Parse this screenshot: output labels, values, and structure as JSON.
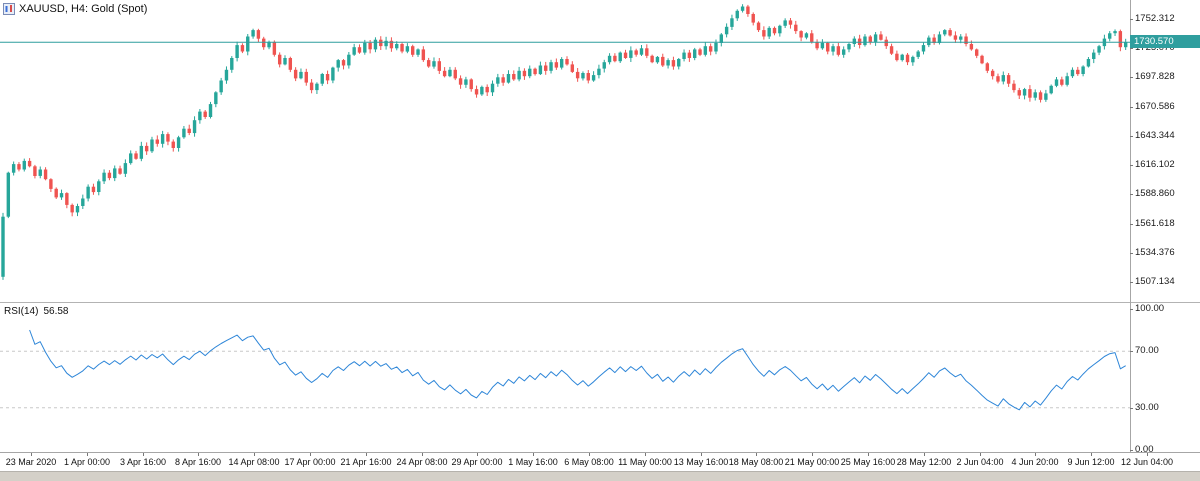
{
  "chart_data": {
    "type": "candlestick",
    "title": "XAUUSD, H4:  Gold (Spot)",
    "symbol": "XAUUSD",
    "timeframe": "H4",
    "description": "Gold (Spot)",
    "current_price": 1730.57,
    "current_price_label": "1730.570",
    "up_color": "#26a69a",
    "down_color": "#ef5350",
    "price_line_color": "#2f9e9e",
    "y_tick_labels": [
      "1752.312",
      "1725.070",
      "1697.828",
      "1670.586",
      "1643.344",
      "1616.102",
      "1588.860",
      "1561.618",
      "1534.376",
      "1507.134"
    ],
    "y_tick_values": [
      1752.312,
      1725.07,
      1697.828,
      1670.586,
      1643.344,
      1616.102,
      1588.86,
      1561.618,
      1534.376,
      1507.134
    ],
    "x_tick_labels": [
      "23 Mar 2020",
      "1 Apr 00:00",
      "3 Apr 16:00",
      "8 Apr 16:00",
      "14 Apr 08:00",
      "17 Apr 00:00",
      "21 Apr 16:00",
      "24 Apr 08:00",
      "29 Apr 00:00",
      "1 May 16:00",
      "6 May 08:00",
      "11 May 00:00",
      "13 May 16:00",
      "18 May 08:00",
      "21 May 00:00",
      "25 May 16:00",
      "28 May 12:00",
      "2 Jun 04:00",
      "4 Jun 20:00",
      "9 Jun 12:00",
      "12 Jun 04:00"
    ],
    "first_open": 1512,
    "closes": [
      1568,
      1609,
      1617,
      1612,
      1620,
      1615,
      1606,
      1612,
      1603,
      1594,
      1586,
      1590,
      1579,
      1572,
      1578,
      1585,
      1596,
      1591,
      1601,
      1609,
      1604,
      1613,
      1608,
      1618,
      1627,
      1622,
      1634,
      1629,
      1640,
      1636,
      1645,
      1638,
      1632,
      1642,
      1650,
      1646,
      1658,
      1666,
      1661,
      1673,
      1684,
      1695,
      1705,
      1716,
      1728,
      1722,
      1736,
      1742,
      1734,
      1726,
      1731,
      1719,
      1710,
      1716,
      1705,
      1697,
      1703,
      1693,
      1686,
      1692,
      1701,
      1695,
      1707,
      1714,
      1709,
      1719,
      1726,
      1721,
      1730,
      1724,
      1733,
      1727,
      1732,
      1725,
      1729,
      1722,
      1727,
      1719,
      1724,
      1714,
      1708,
      1713,
      1704,
      1699,
      1705,
      1697,
      1691,
      1696,
      1687,
      1682,
      1689,
      1684,
      1692,
      1698,
      1693,
      1701,
      1696,
      1704,
      1699,
      1706,
      1701,
      1709,
      1704,
      1712,
      1707,
      1715,
      1710,
      1703,
      1697,
      1702,
      1695,
      1700,
      1706,
      1712,
      1718,
      1713,
      1721,
      1716,
      1723,
      1719,
      1725,
      1718,
      1712,
      1717,
      1709,
      1714,
      1708,
      1715,
      1721,
      1716,
      1724,
      1719,
      1727,
      1722,
      1730,
      1738,
      1745,
      1753,
      1760,
      1764,
      1757,
      1749,
      1742,
      1736,
      1744,
      1739,
      1746,
      1751,
      1747,
      1741,
      1735,
      1739,
      1731,
      1725,
      1730,
      1722,
      1727,
      1719,
      1724,
      1729,
      1734,
      1728,
      1736,
      1731,
      1738,
      1733,
      1727,
      1720,
      1714,
      1719,
      1712,
      1717,
      1722,
      1728,
      1735,
      1730,
      1738,
      1742,
      1737,
      1733,
      1736,
      1729,
      1724,
      1718,
      1711,
      1704,
      1699,
      1694,
      1700,
      1692,
      1686,
      1681,
      1687,
      1679,
      1684,
      1677,
      1683,
      1690,
      1696,
      1691,
      1699,
      1705,
      1701,
      1708,
      1715,
      1721,
      1727,
      1734,
      1739,
      1741,
      1726,
      1730.57
    ],
    "indicator": {
      "type": "line",
      "name": "RSI(14)",
      "value_label": "56.58",
      "color": "#2e86d8",
      "guide_color": "#c8c8c8",
      "range": [
        0,
        100
      ],
      "guides": [
        70,
        30
      ],
      "axis_labels": [
        "100.00",
        "70.00",
        "30.00",
        "0.00"
      ],
      "axis_values": [
        100,
        70,
        30,
        0
      ]
    }
  }
}
